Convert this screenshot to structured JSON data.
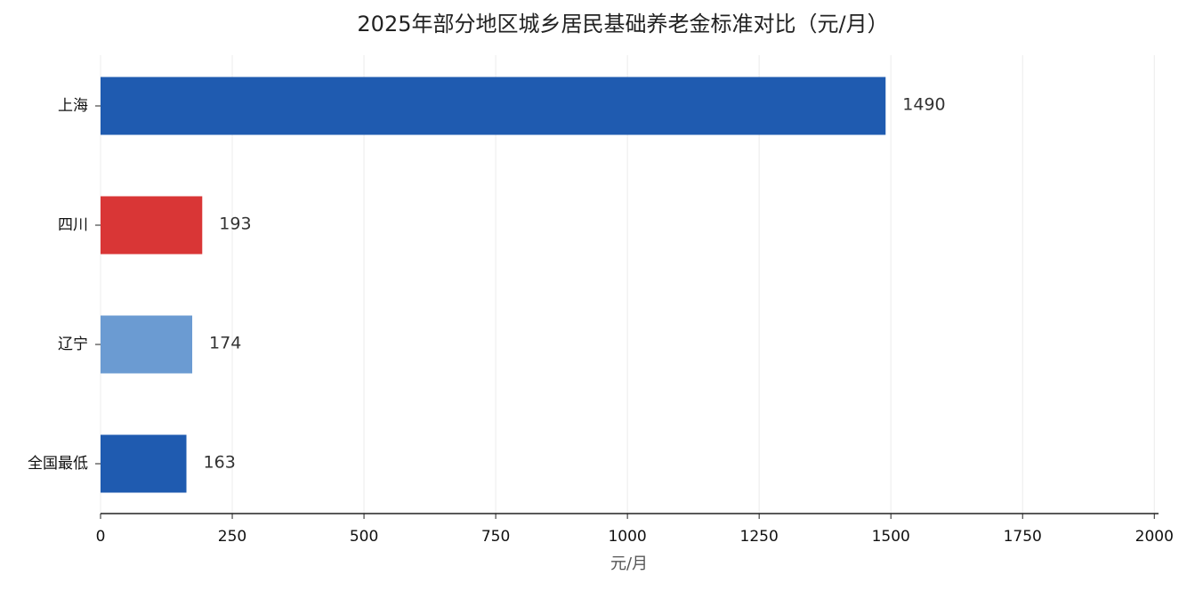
{
  "chart_data": {
    "type": "barh",
    "title": "2025年部分地区城乡居民基础养老金标准对比（元/月）",
    "x_label": "元/月",
    "categories": [
      "上海",
      "四川",
      "辽宁",
      "全国最低"
    ],
    "values": [
      1490,
      193,
      174,
      163
    ],
    "colors": [
      "#1f5bb0",
      "#d93636",
      "#6b9bd2",
      "#1f5bb0"
    ],
    "xlim": [
      0,
      2008
    ],
    "xticks": [
      0,
      250,
      500,
      750,
      1000,
      1250,
      1500,
      1750,
      2000
    ],
    "grid": true
  }
}
